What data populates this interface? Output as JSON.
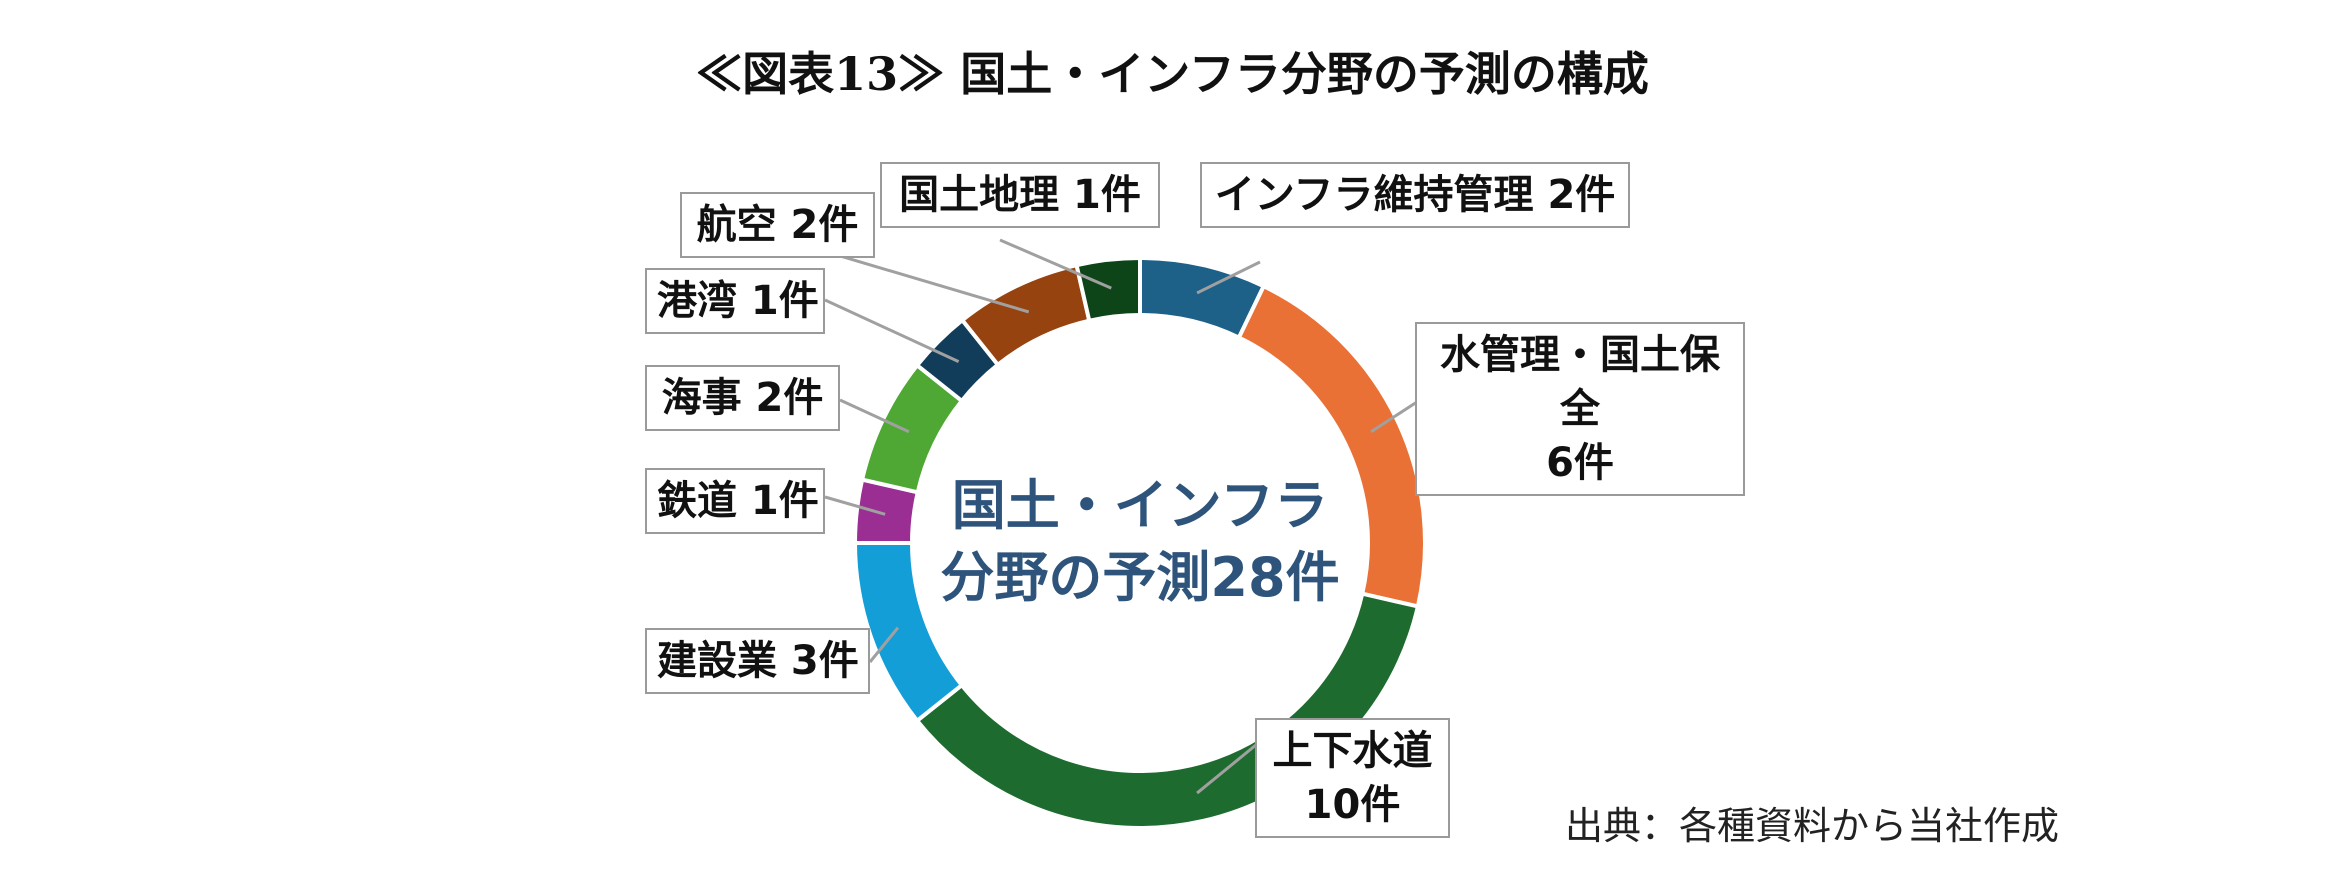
{
  "title": "≪図表13≫ 国土・インフラ分野の予測の構成",
  "center_label": [
    "国土・インフラ",
    "分野の予測28件"
  ],
  "source": "出典：各種資料から当社作成",
  "chart_data": {
    "type": "pie",
    "variant": "donut",
    "total": 28,
    "slices": [
      {
        "label": "インフラ維持管理 2件",
        "value": 2,
        "color": "#1d6088"
      },
      {
        "label": "水管理・国土保全\n6件",
        "value": 6,
        "color": "#ea7135"
      },
      {
        "label": "上下水道\n10件",
        "value": 10,
        "color": "#1d6b2e"
      },
      {
        "label": "建設業 3件",
        "value": 3,
        "color": "#149ed8"
      },
      {
        "label": "鉄道 1件",
        "value": 1,
        "color": "#9a2e93"
      },
      {
        "label": "海事 2件",
        "value": 2,
        "color": "#4ea833"
      },
      {
        "label": "港湾 1件",
        "value": 1,
        "color": "#123d5a"
      },
      {
        "label": "航空 2件",
        "value": 2,
        "color": "#974310"
      },
      {
        "label": "国土地理 1件",
        "value": 1,
        "color": "#0d4519"
      }
    ]
  }
}
